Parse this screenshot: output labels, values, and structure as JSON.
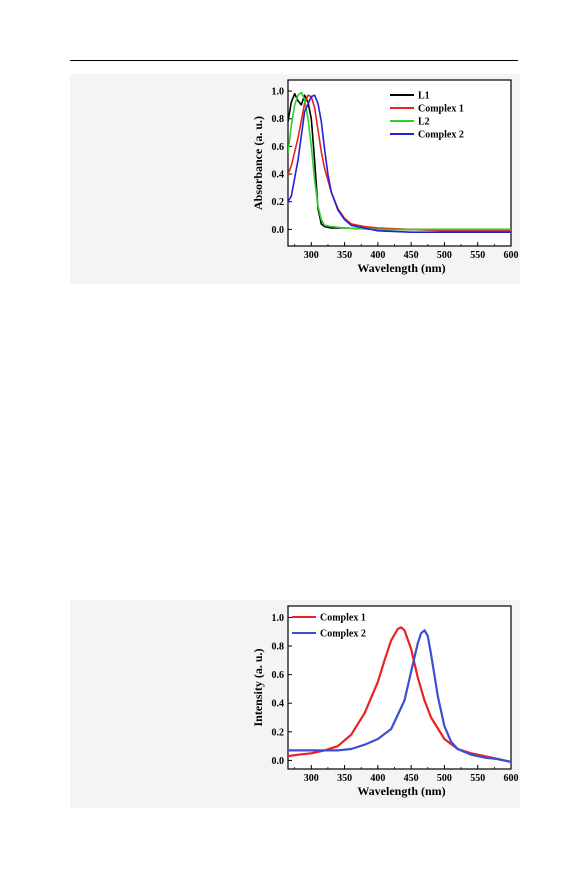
{
  "chart_data": [
    {
      "type": "line",
      "xlabel": "Wavelength (nm)",
      "ylabel": "Absorbance (a. u.)",
      "xlim": [
        265,
        600
      ],
      "ylim": [
        -0.12,
        1.08
      ],
      "xticks": [
        300,
        350,
        400,
        450,
        500,
        550,
        600
      ],
      "yticks": [
        0.0,
        0.2,
        0.4,
        0.6,
        0.8,
        1.0
      ],
      "tick_labels_y": [
        "0.0",
        "0.2",
        "0.4",
        "0.6",
        "0.8",
        "1.0"
      ],
      "tick_labels_x": [
        "300",
        "350",
        "400",
        "450",
        "500",
        "550",
        "600"
      ],
      "legend_position": "top-right",
      "series": [
        {
          "name": "L1",
          "color": "#000000",
          "x": [
            265,
            270,
            275,
            280,
            285,
            290,
            295,
            300,
            305,
            310,
            315,
            320,
            330,
            350,
            400,
            500,
            600
          ],
          "y": [
            0.78,
            0.92,
            0.98,
            0.93,
            0.9,
            0.97,
            0.92,
            0.8,
            0.5,
            0.15,
            0.04,
            0.02,
            0.01,
            0.01,
            0.0,
            0.0,
            0.0
          ]
        },
        {
          "name": "Complex 1",
          "color": "#e8231f",
          "x": [
            265,
            270,
            280,
            290,
            295,
            300,
            305,
            310,
            315,
            320,
            330,
            340,
            350,
            360,
            380,
            400,
            450,
            500,
            600
          ],
          "y": [
            0.4,
            0.46,
            0.66,
            0.91,
            0.97,
            0.96,
            0.88,
            0.72,
            0.56,
            0.44,
            0.27,
            0.15,
            0.08,
            0.04,
            0.02,
            0.01,
            0.0,
            -0.01,
            -0.01
          ]
        },
        {
          "name": "L2",
          "color": "#2ed12a",
          "x": [
            265,
            270,
            275,
            280,
            285,
            290,
            295,
            300,
            305,
            310,
            315,
            320,
            330,
            350,
            400,
            500,
            600
          ],
          "y": [
            0.55,
            0.75,
            0.9,
            0.97,
            0.99,
            0.94,
            0.8,
            0.6,
            0.36,
            0.17,
            0.07,
            0.03,
            0.02,
            0.01,
            0.0,
            0.0,
            0.0
          ]
        },
        {
          "name": "Complex 2",
          "color": "#2222d6",
          "x": [
            265,
            270,
            280,
            290,
            300,
            305,
            310,
            315,
            320,
            325,
            330,
            340,
            350,
            360,
            380,
            400,
            450,
            500,
            600
          ],
          "y": [
            0.2,
            0.24,
            0.5,
            0.85,
            0.96,
            0.97,
            0.91,
            0.78,
            0.58,
            0.4,
            0.27,
            0.14,
            0.07,
            0.03,
            0.01,
            -0.01,
            -0.02,
            -0.02,
            -0.02
          ]
        }
      ]
    },
    {
      "type": "line",
      "xlabel": "Wavelength (nm)",
      "ylabel": "Intensity (a. u.)",
      "xlim": [
        265,
        600
      ],
      "ylim": [
        -0.06,
        1.08
      ],
      "xticks": [
        300,
        350,
        400,
        450,
        500,
        550,
        600
      ],
      "yticks": [
        0.0,
        0.2,
        0.4,
        0.6,
        0.8,
        1.0
      ],
      "tick_labels_y": [
        "0.0",
        "0.2",
        "0.4",
        "0.6",
        "0.8",
        "1.0"
      ],
      "tick_labels_x": [
        "300",
        "350",
        "400",
        "450",
        "500",
        "550",
        "600"
      ],
      "legend_position": "top-left",
      "series": [
        {
          "name": "Complex 1",
          "color": "#e8231f",
          "x": [
            265,
            280,
            300,
            320,
            340,
            360,
            380,
            400,
            410,
            420,
            430,
            435,
            440,
            450,
            460,
            470,
            480,
            500,
            520,
            540,
            560,
            580,
            600
          ],
          "y": [
            0.03,
            0.04,
            0.05,
            0.07,
            0.1,
            0.18,
            0.33,
            0.55,
            0.7,
            0.84,
            0.92,
            0.93,
            0.91,
            0.78,
            0.58,
            0.42,
            0.3,
            0.15,
            0.08,
            0.05,
            0.03,
            0.01,
            -0.01
          ]
        },
        {
          "name": "Complex 2",
          "color": "#3b4fd0",
          "x": [
            265,
            280,
            300,
            320,
            340,
            360,
            380,
            400,
            420,
            440,
            450,
            460,
            465,
            470,
            475,
            480,
            490,
            500,
            510,
            520,
            540,
            560,
            580,
            600
          ],
          "y": [
            0.07,
            0.07,
            0.07,
            0.07,
            0.07,
            0.08,
            0.11,
            0.15,
            0.22,
            0.42,
            0.62,
            0.82,
            0.89,
            0.91,
            0.87,
            0.74,
            0.45,
            0.24,
            0.13,
            0.08,
            0.04,
            0.02,
            0.01,
            -0.01
          ]
        }
      ]
    }
  ]
}
